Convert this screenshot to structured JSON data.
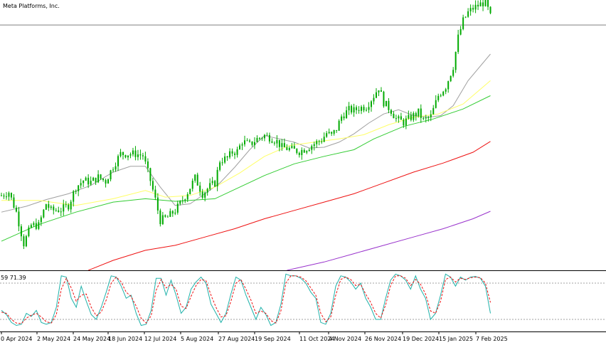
{
  "instrument": "Meta Platforms, Inc.",
  "oscillator_label": "59 71.39",
  "colors": {
    "candle": "#00aa00",
    "ma_short": "#a0a0a0",
    "ma_mid": "#ffff66",
    "ma_long": "#33cc33",
    "ma_longer": "#ee1111",
    "ma_longest": "#9933cc",
    "stoch_main": "#20b2aa",
    "stoch_signal": "#ee1111",
    "hline": "#808080"
  },
  "chart_data": [
    {
      "type": "candlestick",
      "title": "Meta Platforms, Inc.",
      "x_tick_labels": [
        "0 Apr 2024",
        "2 May 2024",
        "24 May 2024",
        "18 Jun 2024",
        "12 Jul 2024",
        "5 Aug 2024",
        "27 Aug 2024",
        "19 Sep 2024",
        "11 Oct 2024",
        "4 Nov 2024",
        "26 Nov 2024",
        "19 Dec 2024",
        "15 Jan 2025",
        "7 Feb 2025"
      ],
      "price_range": [
        420,
        745
      ],
      "horizontal_level": 715,
      "close_path": [
        [
          0,
          510
        ],
        [
          3,
          514
        ],
        [
          6,
          490
        ],
        [
          9,
          452
        ],
        [
          12,
          474
        ],
        [
          15,
          474
        ],
        [
          18,
          500
        ],
        [
          20,
          492
        ],
        [
          24,
          493
        ],
        [
          27,
          498
        ],
        [
          30,
          520
        ],
        [
          33,
          528
        ],
        [
          36,
          526
        ],
        [
          39,
          532
        ],
        [
          42,
          527
        ],
        [
          45,
          545
        ],
        [
          48,
          560
        ],
        [
          51,
          560
        ],
        [
          54,
          560
        ],
        [
          57,
          558
        ],
        [
          60,
          528
        ],
        [
          62,
          505
        ],
        [
          64,
          480
        ],
        [
          67,
          484
        ],
        [
          70,
          492
        ],
        [
          72,
          500
        ],
        [
          75,
          514
        ],
        [
          78,
          531
        ],
        [
          81,
          512
        ],
        [
          84,
          521
        ],
        [
          86,
          525
        ],
        [
          88,
          552
        ],
        [
          91,
          555
        ],
        [
          93,
          562
        ],
        [
          95,
          563
        ],
        [
          97,
          575
        ],
        [
          100,
          571
        ],
        [
          103,
          578
        ],
        [
          106,
          582
        ],
        [
          108,
          580
        ],
        [
          111,
          575
        ],
        [
          113,
          568
        ],
        [
          117,
          565
        ],
        [
          120,
          563
        ],
        [
          123,
          567
        ],
        [
          126,
          572
        ],
        [
          129,
          577
        ],
        [
          131,
          585
        ],
        [
          133,
          582
        ],
        [
          135,
          590
        ],
        [
          137,
          605
        ],
        [
          140,
          613
        ],
        [
          142,
          612
        ],
        [
          144,
          615
        ],
        [
          147,
          617
        ],
        [
          150,
          630
        ],
        [
          152,
          640
        ],
        [
          154,
          622
        ],
        [
          157,
          612
        ],
        [
          159,
          602
        ],
        [
          162,
          598
        ],
        [
          165,
          604
        ],
        [
          168,
          610
        ],
        [
          170,
          600
        ],
        [
          173,
          605
        ],
        [
          176,
          630
        ],
        [
          179,
          641
        ],
        [
          182,
          665
        ],
        [
          184,
          700
        ],
        [
          186,
          720
        ],
        [
          188,
          730
        ],
        [
          190,
          735
        ],
        [
          193,
          740
        ],
        [
          195,
          743
        ],
        [
          197,
          725
        ]
      ],
      "moving_averages": [
        {
          "color": "#a0a0a0",
          "path": [
            [
              0,
              490
            ],
            [
              10,
              497
            ],
            [
              18,
              505
            ],
            [
              27,
              512
            ],
            [
              36,
              522
            ],
            [
              45,
              538
            ],
            [
              52,
              545
            ],
            [
              58,
              545
            ],
            [
              64,
              520
            ],
            [
              70,
              498
            ],
            [
              76,
              500
            ],
            [
              82,
              512
            ],
            [
              88,
              525
            ],
            [
              94,
              544
            ],
            [
              100,
              565
            ],
            [
              106,
              582
            ],
            [
              112,
              578
            ],
            [
              118,
              574
            ],
            [
              124,
              567
            ],
            [
              130,
              568
            ],
            [
              136,
              574
            ],
            [
              142,
              584
            ],
            [
              148,
              597
            ],
            [
              154,
              608
            ],
            [
              160,
              613
            ],
            [
              166,
              606
            ],
            [
              172,
              604
            ],
            [
              177,
              606
            ],
            [
              182,
              618
            ],
            [
              188,
              648
            ],
            [
              197,
              680
            ]
          ]
        },
        {
          "color": "#ffff66",
          "path": [
            [
              0,
              504
            ],
            [
              15,
              504
            ],
            [
              30,
              498
            ],
            [
              45,
              506
            ],
            [
              58,
              516
            ],
            [
              66,
              508
            ],
            [
              76,
              510
            ],
            [
              86,
              520
            ],
            [
              96,
              537
            ],
            [
              106,
              557
            ],
            [
              116,
              570
            ],
            [
              126,
              574
            ],
            [
              136,
              578
            ],
            [
              146,
              583
            ],
            [
              156,
              595
            ],
            [
              166,
              604
            ],
            [
              176,
              608
            ],
            [
              186,
              620
            ],
            [
              197,
              648
            ]
          ]
        },
        {
          "color": "#33cc33",
          "path": [
            [
              0,
              455
            ],
            [
              15,
              475
            ],
            [
              30,
              490
            ],
            [
              45,
              502
            ],
            [
              58,
              506
            ],
            [
              70,
              503
            ],
            [
              86,
              506
            ],
            [
              96,
              520
            ],
            [
              106,
              534
            ],
            [
              118,
              548
            ],
            [
              130,
              557
            ],
            [
              142,
              565
            ],
            [
              150,
              578
            ],
            [
              162,
              593
            ],
            [
              174,
              602
            ],
            [
              186,
              614
            ],
            [
              197,
              630
            ]
          ]
        },
        {
          "color": "#ee1111",
          "path": [
            [
              35,
              420
            ],
            [
              45,
              432
            ],
            [
              58,
              444
            ],
            [
              70,
              450
            ],
            [
              82,
              460
            ],
            [
              94,
              470
            ],
            [
              106,
              482
            ],
            [
              118,
              492
            ],
            [
              130,
              502
            ],
            [
              142,
              512
            ],
            [
              154,
              525
            ],
            [
              166,
              538
            ],
            [
              178,
              549
            ],
            [
              190,
              562
            ],
            [
              197,
              575
            ]
          ]
        },
        {
          "color": "#9933cc",
          "path": [
            [
              115,
              420
            ],
            [
              130,
              430
            ],
            [
              142,
              440
            ],
            [
              154,
              450
            ],
            [
              166,
              460
            ],
            [
              178,
              470
            ],
            [
              190,
              482
            ],
            [
              197,
              491
            ]
          ]
        }
      ]
    },
    {
      "type": "line",
      "title": "59 71.39",
      "ylim": [
        0,
        100
      ],
      "levels": [
        80,
        20
      ],
      "series": [
        {
          "color": "#20b2aa",
          "values": [
            35,
            28,
            15,
            10,
            12,
            30,
            25,
            35,
            15,
            12,
            15,
            40,
            92,
            90,
            55,
            40,
            75,
            50,
            28,
            20,
            40,
            65,
            92,
            90,
            75,
            55,
            60,
            30,
            10,
            12,
            35,
            88,
            88,
            60,
            85,
            60,
            30,
            40,
            70,
            82,
            90,
            80,
            45,
            30,
            15,
            30,
            62,
            90,
            85,
            60,
            40,
            20,
            40,
            28,
            10,
            15,
            45,
            95,
            92,
            92,
            88,
            80,
            65,
            55,
            15,
            12,
            30,
            75,
            92,
            90,
            82,
            70,
            80,
            55,
            40,
            20,
            20,
            55,
            85,
            95,
            92,
            85,
            70,
            92,
            70,
            55,
            20,
            30,
            60,
            95,
            90,
            75,
            90,
            85,
            90,
            91,
            88,
            75,
            30
          ]
        },
        {
          "color": "#ee1111",
          "values": [
            32,
            30,
            20,
            14,
            13,
            22,
            27,
            30,
            24,
            16,
            14,
            28,
            70,
            88,
            72,
            50,
            60,
            62,
            40,
            26,
            32,
            52,
            80,
            90,
            82,
            65,
            58,
            42,
            22,
            14,
            26,
            68,
            86,
            72,
            78,
            70,
            42,
            38,
            58,
            76,
            86,
            84,
            60,
            40,
            24,
            26,
            50,
            80,
            86,
            70,
            52,
            30,
            34,
            30,
            18,
            14,
            34,
            80,
            92,
            92,
            90,
            84,
            72,
            60,
            30,
            16,
            24,
            60,
            86,
            90,
            86,
            76,
            78,
            62,
            48,
            30,
            22,
            44,
            76,
            92,
            92,
            88,
            76,
            86,
            78,
            62,
            34,
            30,
            50,
            86,
            90,
            82,
            88,
            86,
            89,
            90,
            89,
            80,
            48
          ]
        }
      ]
    }
  ]
}
